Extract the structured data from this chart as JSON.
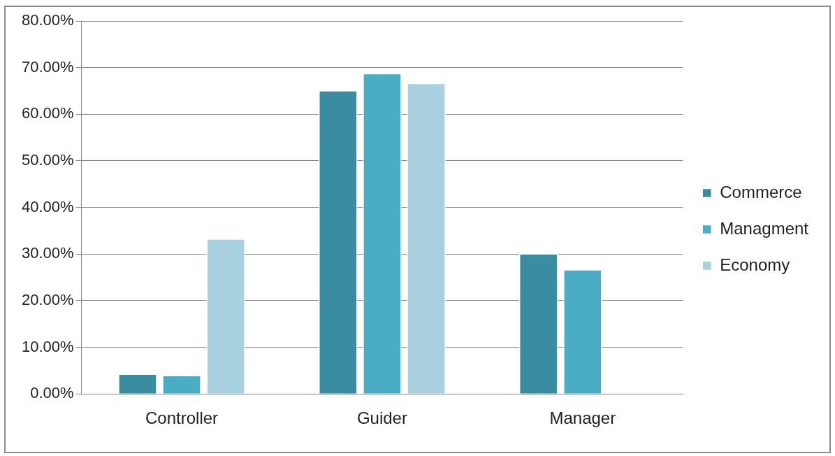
{
  "chart_data": {
    "type": "bar",
    "categories": [
      "Controller",
      "Guider",
      "Manager"
    ],
    "series": [
      {
        "name": "Commerce",
        "color": "#3a8ca3",
        "values": [
          4.3,
          65.1,
          30.1
        ]
      },
      {
        "name": "Managment",
        "color": "#4bacc6",
        "values": [
          4.0,
          68.8,
          26.7
        ]
      },
      {
        "name": "Economy",
        "color": "#a9d0de",
        "values": [
          33.3,
          66.7,
          0
        ]
      }
    ],
    "ylim": [
      0,
      80
    ],
    "yticks": [
      {
        "value": 0,
        "label": "0.00%"
      },
      {
        "value": 10,
        "label": "10.00%"
      },
      {
        "value": 20,
        "label": "20.00%"
      },
      {
        "value": 30,
        "label": "30.00%"
      },
      {
        "value": 40,
        "label": "40.00%"
      },
      {
        "value": 50,
        "label": "50.00%"
      },
      {
        "value": 60,
        "label": "60.00%"
      },
      {
        "value": 70,
        "label": "70.00%"
      },
      {
        "value": 80,
        "label": "80.00%"
      }
    ],
    "grid": "y",
    "legend": "right"
  }
}
